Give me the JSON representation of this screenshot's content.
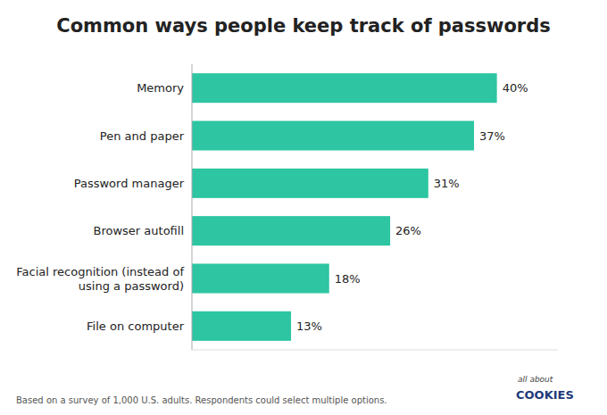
{
  "chart_data": {
    "type": "bar",
    "orientation": "horizontal",
    "title": "Common ways people keep track of passwords",
    "categories": [
      "File on computer",
      "Facial recognition (instead of\nusing a password)",
      "Browser autofill",
      "Password manager",
      "Pen and paper",
      "Memory"
    ],
    "values": [
      13,
      18,
      26,
      31,
      37,
      40
    ],
    "value_labels": [
      "13%",
      "18%",
      "26%",
      "31%",
      "37%",
      "40%"
    ],
    "data_labels": true,
    "color": "#2DC5A2",
    "xlim": [
      0,
      48
    ],
    "grid": false,
    "tick_labels": "y",
    "annotations": [
      "Based on a survey of 1,000 U.S. adults. Respondents could select multiple options.",
      "all about",
      "COOKIES"
    ]
  }
}
